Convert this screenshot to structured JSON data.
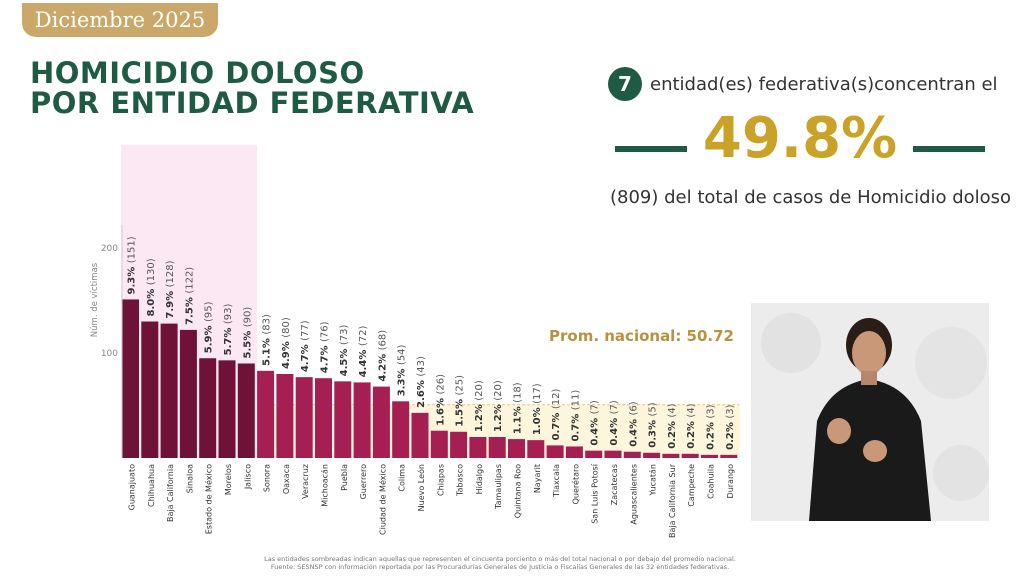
{
  "header": {
    "date_badge": "Diciembre 2025"
  },
  "title": {
    "line1": "HOMICIDIO DOLOSO",
    "line2": "POR ENTIDAD FEDERATIVA"
  },
  "summary": {
    "count": "7",
    "line1": "entidad(es) federativa(s)concentran el",
    "percent": "49.8%",
    "line2": "(809) del total de casos de Homicidio doloso"
  },
  "colors": {
    "dark_green": "#1f5a45",
    "gold": "#c9a227",
    "badge": "#c9a86a",
    "bar_dark": "#6e1238",
    "bar_light": "#a51f52",
    "highlight": "#fbe8f2"
  },
  "prom_label": "Prom. nacional: 50.72",
  "footnote": {
    "line1": "Las entidades sombreadas indican aquellas que representen el cincuenta porciento o más del total nacional o por debajo del promedio nacional.",
    "line2": "Fuente: SESNSP con información reportada por las Procuradurías Generales de Justicia o Fiscalías Generales de las 32 entidades federativas."
  },
  "chart_data": {
    "type": "bar",
    "ylabel": "Núm. de víctimas",
    "yticks": [
      100,
      200
    ],
    "ylim": [
      0,
      300
    ],
    "average": 50.72,
    "highlighted_top_count": 7,
    "categories": [
      "Guanajuato",
      "Chihuahua",
      "Baja California",
      "Sinaloa",
      "Estado de México",
      "Morelos",
      "Jalisco",
      "Sonora",
      "Oaxaca",
      "Veracruz",
      "Michoacán",
      "Puebla",
      "Guerrero",
      "Ciudad de México",
      "Colima",
      "Nuevo León",
      "Chiapas",
      "Tabasco",
      "Hidalgo",
      "Tamaulipas",
      "Quintana Roo",
      "Nayarit",
      "Tlaxcala",
      "Querétaro",
      "San Luis Potosí",
      "Zacatecas",
      "Aguascalientes",
      "Yucatán",
      "Baja California Sur",
      "Campeche",
      "Coahuila",
      "Durango"
    ],
    "values": [
      151,
      130,
      128,
      122,
      95,
      93,
      90,
      83,
      80,
      77,
      76,
      73,
      72,
      68,
      54,
      43,
      26,
      25,
      20,
      20,
      18,
      17,
      12,
      11,
      7,
      7,
      6,
      5,
      4,
      4,
      3,
      3
    ],
    "pct_labels": [
      "9.3%",
      "8.0%",
      "7.9%",
      "7.5%",
      "5.9%",
      "5.7%",
      "5.5%",
      "5.1%",
      "4.9%",
      "4.7%",
      "4.7%",
      "4.5%",
      "4.4%",
      "4.2%",
      "3.3%",
      "2.6%",
      "1.6%",
      "1.5%",
      "1.2%",
      "1.2%",
      "1.1%",
      "1.0%",
      "0.7%",
      "0.7%",
      "0.4%",
      "0.4%",
      "0.4%",
      "0.3%",
      "0.2%",
      "0.2%",
      "0.2%",
      "0.2%"
    ],
    "count_labels": [
      "(151)",
      "(130)",
      "(128)",
      "(122)",
      "(95)",
      "(93)",
      "(90)",
      "(83)",
      "(80)",
      "(77)",
      "(76)",
      "(73)",
      "(72)",
      "(68)",
      "(54)",
      "(43)",
      "(26)",
      "(25)",
      "(20)",
      "(20)",
      "(18)",
      "(17)",
      "(12)",
      "(11)",
      "(7)",
      "(7)",
      "(6)",
      "(5)",
      "(4)",
      "(4)",
      "(3)",
      "(3)"
    ]
  }
}
